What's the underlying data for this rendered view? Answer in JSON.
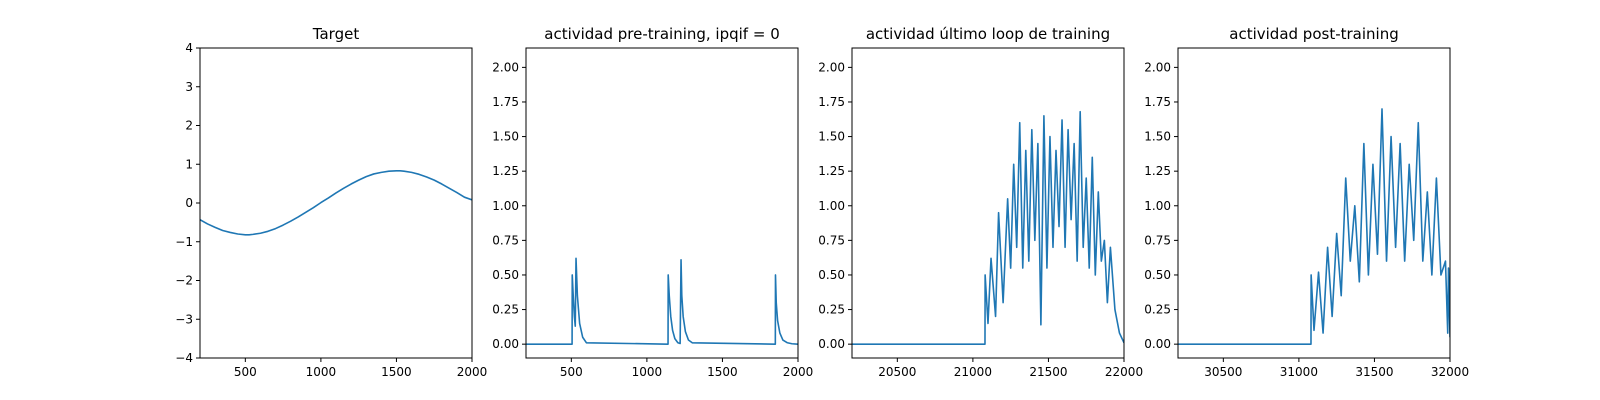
{
  "chart_data": [
    {
      "type": "line",
      "title": "Target",
      "xlim": [
        200,
        2000
      ],
      "ylim": [
        -4,
        4
      ],
      "xticks": [
        500,
        1000,
        1500,
        2000
      ],
      "yticks": [
        -4,
        -3,
        -2,
        -1,
        0,
        1,
        2,
        3,
        4
      ],
      "ytick_labels": [
        "−4",
        "−3",
        "−2",
        "−1",
        "0",
        "1",
        "2",
        "3",
        "4"
      ],
      "series": [
        {
          "color": "#1f77b4",
          "x": [
            200,
            250,
            300,
            350,
            400,
            450,
            500,
            525,
            550,
            600,
            650,
            700,
            750,
            800,
            850,
            900,
            950,
            1000,
            1050,
            1100,
            1150,
            1200,
            1250,
            1300,
            1350,
            1400,
            1450,
            1500,
            1525,
            1550,
            1600,
            1650,
            1700,
            1750,
            1800,
            1850,
            1900,
            1950,
            2000
          ],
          "y": [
            -0.43,
            -0.54,
            -0.63,
            -0.71,
            -0.76,
            -0.8,
            -0.82,
            -0.82,
            -0.81,
            -0.78,
            -0.73,
            -0.66,
            -0.57,
            -0.47,
            -0.36,
            -0.24,
            -0.12,
            0.01,
            0.13,
            0.26,
            0.38,
            0.49,
            0.59,
            0.68,
            0.75,
            0.79,
            0.82,
            0.83,
            0.83,
            0.82,
            0.79,
            0.74,
            0.67,
            0.59,
            0.49,
            0.38,
            0.27,
            0.15,
            0.08
          ]
        }
      ]
    },
    {
      "type": "line",
      "title": "actividad pre-training, ipqif = 0",
      "xlim": [
        200,
        2000
      ],
      "ylim": [
        -0.1,
        2.14
      ],
      "xticks": [
        500,
        1000,
        1500,
        2000
      ],
      "yticks": [
        0,
        0.25,
        0.5,
        0.75,
        1,
        1.25,
        1.5,
        1.75,
        2
      ],
      "ytick_labels": [
        "0.00",
        "0.25",
        "0.50",
        "0.75",
        "1.00",
        "1.25",
        "1.50",
        "1.75",
        "2.00"
      ],
      "series": [
        {
          "color": "#1f77b4",
          "x": [
            200,
            505,
            506,
            512,
            520,
            526,
            531,
            540,
            555,
            575,
            600,
            1140,
            1141,
            1148,
            1158,
            1170,
            1185,
            1205,
            1220,
            1226,
            1231,
            1240,
            1255,
            1275,
            1300,
            1850,
            1851,
            1856,
            1865,
            1880,
            1900,
            1930,
            1960,
            2000
          ],
          "y": [
            0,
            0,
            0.5,
            0.36,
            0.2,
            0.13,
            0.62,
            0.35,
            0.15,
            0.05,
            0.01,
            0,
            0.5,
            0.35,
            0.2,
            0.1,
            0.04,
            0.01,
            0.005,
            0.61,
            0.35,
            0.2,
            0.09,
            0.03,
            0.01,
            0,
            0.5,
            0.3,
            0.17,
            0.08,
            0.03,
            0.01,
            0.003,
            0
          ]
        }
      ]
    },
    {
      "type": "line",
      "title": "actividad último loop de training",
      "xlim": [
        20200,
        22000
      ],
      "ylim": [
        -0.1,
        2.14
      ],
      "xticks": [
        20500,
        21000,
        21500,
        22000
      ],
      "yticks": [
        0,
        0.25,
        0.5,
        0.75,
        1,
        1.25,
        1.5,
        1.75,
        2
      ],
      "ytick_labels": [
        "0.00",
        "0.25",
        "0.50",
        "0.75",
        "1.00",
        "1.25",
        "1.50",
        "1.75",
        "2.00"
      ],
      "series": [
        {
          "color": "#1f77b4",
          "x": [
            20200,
            21080,
            21081,
            21100,
            21120,
            21150,
            21170,
            21200,
            21230,
            21250,
            21270,
            21290,
            21310,
            21330,
            21350,
            21370,
            21390,
            21410,
            21430,
            21450,
            21470,
            21490,
            21510,
            21530,
            21550,
            21570,
            21590,
            21610,
            21630,
            21650,
            21670,
            21690,
            21710,
            21730,
            21750,
            21770,
            21790,
            21810,
            21830,
            21850,
            21870,
            21890,
            21910,
            21940,
            21970,
            22000
          ],
          "y": [
            0,
            0,
            0.5,
            0.15,
            0.62,
            0.2,
            0.95,
            0.3,
            1.05,
            0.55,
            1.3,
            0.7,
            1.6,
            0.55,
            1.4,
            0.6,
            1.55,
            0.75,
            1.45,
            0.14,
            1.65,
            0.55,
            1.5,
            0.7,
            1.4,
            0.85,
            1.62,
            0.7,
            1.55,
            0.9,
            1.45,
            0.6,
            1.68,
            0.7,
            1.2,
            0.55,
            1.35,
            0.5,
            1.1,
            0.6,
            0.75,
            0.3,
            0.7,
            0.25,
            0.08,
            0.01
          ]
        }
      ]
    },
    {
      "type": "line",
      "title": "actividad post-training",
      "xlim": [
        30200,
        32000
      ],
      "ylim": [
        -0.1,
        2.14
      ],
      "xticks": [
        30500,
        31000,
        31500,
        32000
      ],
      "yticks": [
        0,
        0.25,
        0.5,
        0.75,
        1,
        1.25,
        1.5,
        1.75,
        2
      ],
      "ytick_labels": [
        "0.00",
        "0.25",
        "0.50",
        "0.75",
        "1.00",
        "1.25",
        "1.50",
        "1.75",
        "2.00"
      ],
      "series": [
        {
          "color": "#1f77b4",
          "x": [
            30200,
            31080,
            31081,
            31100,
            31130,
            31160,
            31190,
            31220,
            31250,
            31280,
            31310,
            31340,
            31370,
            31400,
            31430,
            31460,
            31490,
            31520,
            31550,
            31580,
            31610,
            31640,
            31670,
            31700,
            31730,
            31760,
            31790,
            31820,
            31850,
            31880,
            31910,
            31940,
            31970,
            31985,
            31990,
            32000
          ],
          "y": [
            0,
            0,
            0.5,
            0.1,
            0.52,
            0.08,
            0.7,
            0.2,
            0.8,
            0.35,
            1.2,
            0.6,
            1.0,
            0.45,
            1.45,
            0.5,
            1.3,
            0.65,
            1.7,
            0.6,
            1.5,
            0.7,
            1.45,
            0.6,
            1.3,
            0.75,
            1.6,
            0.6,
            1.1,
            0.5,
            1.2,
            0.5,
            0.6,
            0.08,
            0.55,
            0.05
          ]
        }
      ]
    }
  ]
}
